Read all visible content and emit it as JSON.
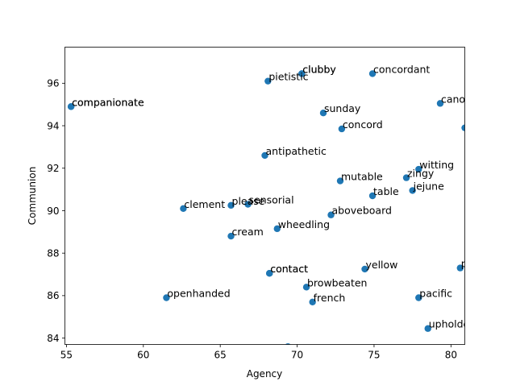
{
  "chart_data": {
    "type": "scatter",
    "title": "",
    "xlabel": "Agency",
    "ylabel": "Communion",
    "xlim": [
      54.9,
      80.9
    ],
    "ylim": [
      83.7,
      97.7
    ],
    "xticks": [
      55,
      60,
      65,
      70,
      75,
      80
    ],
    "yticks": [
      84,
      86,
      88,
      90,
      92,
      94,
      96
    ],
    "grid": false,
    "legend": "none",
    "marker_color": "#1f77b4",
    "points": [
      {
        "label": "clubby",
        "x": 70.3,
        "y": 96.45
      },
      {
        "label": "clubby",
        "x": 70.3,
        "y": 96.45
      },
      {
        "label": "concordant",
        "x": 74.9,
        "y": 96.45
      },
      {
        "label": "pietistic",
        "x": 68.1,
        "y": 96.1
      },
      {
        "label": "companionate",
        "x": 55.3,
        "y": 94.9
      },
      {
        "label": "companionate",
        "x": 55.3,
        "y": 94.9
      },
      {
        "label": "canonical",
        "x": 79.3,
        "y": 95.05
      },
      {
        "label": "sunday",
        "x": 71.7,
        "y": 94.6
      },
      {
        "label": "concord",
        "x": 72.9,
        "y": 93.85
      },
      {
        "label": "",
        "x": 80.9,
        "y": 93.9
      },
      {
        "label": "antipathetic",
        "x": 67.9,
        "y": 92.6
      },
      {
        "label": "witting",
        "x": 77.9,
        "y": 91.95
      },
      {
        "label": "zingy",
        "x": 77.1,
        "y": 91.55
      },
      {
        "label": "mutable",
        "x": 72.8,
        "y": 91.4
      },
      {
        "label": "jejune",
        "x": 77.5,
        "y": 90.95
      },
      {
        "label": "table",
        "x": 74.9,
        "y": 90.7
      },
      {
        "label": "clement",
        "x": 62.6,
        "y": 90.1
      },
      {
        "label": "please",
        "x": 65.7,
        "y": 90.25
      },
      {
        "label": "sensorial",
        "x": 66.8,
        "y": 90.3
      },
      {
        "label": "aboveboard",
        "x": 72.2,
        "y": 89.8
      },
      {
        "label": "wheedling",
        "x": 68.7,
        "y": 89.15
      },
      {
        "label": "cream",
        "x": 65.7,
        "y": 88.8
      },
      {
        "label": "yellow",
        "x": 74.4,
        "y": 87.25
      },
      {
        "label": "prolix",
        "x": 80.6,
        "y": 87.3
      },
      {
        "label": "contact",
        "x": 68.2,
        "y": 87.05
      },
      {
        "label": "contact",
        "x": 68.2,
        "y": 87.05
      },
      {
        "label": "browbeaten",
        "x": 70.6,
        "y": 86.4
      },
      {
        "label": "openhanded",
        "x": 61.5,
        "y": 85.9
      },
      {
        "label": "pacific",
        "x": 77.9,
        "y": 85.9
      },
      {
        "label": "french",
        "x": 71.0,
        "y": 85.7
      },
      {
        "label": "upholder",
        "x": 78.5,
        "y": 84.45
      },
      {
        "label": "",
        "x": 69.4,
        "y": 83.6
      }
    ]
  }
}
